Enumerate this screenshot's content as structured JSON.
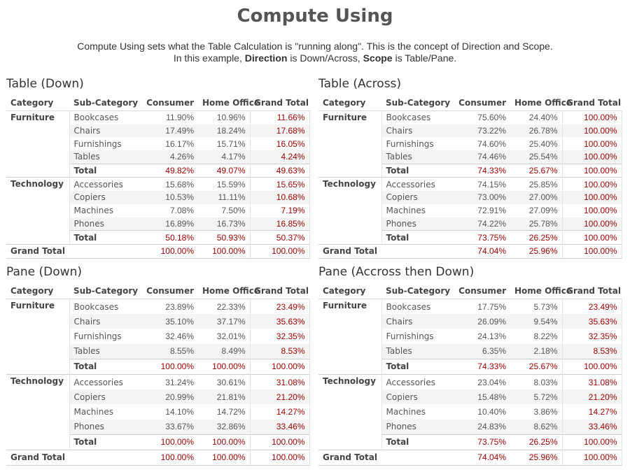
{
  "header": {
    "title": "Compute Using",
    "line1": "Compute Using sets what the Table Calculation is \"running along\". This is the concept of Direction and Scope.",
    "line2_a": "In this example, ",
    "line2_b": "Direction",
    "line2_c": " is Down/Across, ",
    "line2_d": "Scope",
    "line2_e": " is Table/Pane."
  },
  "columns": [
    "Category",
    "Sub-Category",
    "Consumer",
    "Home Office",
    "Grand Total"
  ],
  "grand_total_label": "Grand Total",
  "total_label": "Total",
  "panels": [
    {
      "title": "Table (Down)",
      "groups": [
        {
          "category": "Furniture",
          "rows": [
            [
              "Bookcases",
              "11.90%",
              "10.96%",
              "11.66%"
            ],
            [
              "Chairs",
              "17.49%",
              "18.24%",
              "17.68%"
            ],
            [
              "Furnishings",
              "16.17%",
              "15.71%",
              "16.05%"
            ],
            [
              "Tables",
              "4.26%",
              "4.17%",
              "4.24%"
            ]
          ],
          "total": [
            "49.82%",
            "49.07%",
            "49.63%"
          ]
        },
        {
          "category": "Technology",
          "rows": [
            [
              "Accessories",
              "15.68%",
              "15.59%",
              "15.65%"
            ],
            [
              "Copiers",
              "10.53%",
              "11.11%",
              "10.68%"
            ],
            [
              "Machines",
              "7.08%",
              "7.50%",
              "7.19%"
            ],
            [
              "Phones",
              "16.89%",
              "16.73%",
              "16.85%"
            ]
          ],
          "total": [
            "50.18%",
            "50.93%",
            "50.37%"
          ]
        }
      ],
      "grand": [
        "100.00%",
        "100.00%",
        "100.00%"
      ]
    },
    {
      "title": "Table (Across)",
      "groups": [
        {
          "category": "Furniture",
          "rows": [
            [
              "Bookcases",
              "75.60%",
              "24.40%",
              "100.00%"
            ],
            [
              "Chairs",
              "73.22%",
              "26.78%",
              "100.00%"
            ],
            [
              "Furnishings",
              "74.60%",
              "25.40%",
              "100.00%"
            ],
            [
              "Tables",
              "74.46%",
              "25.54%",
              "100.00%"
            ]
          ],
          "total": [
            "74.33%",
            "25.67%",
            "100.00%"
          ]
        },
        {
          "category": "Technology",
          "rows": [
            [
              "Accessories",
              "74.15%",
              "25.85%",
              "100.00%"
            ],
            [
              "Copiers",
              "73.00%",
              "27.00%",
              "100.00%"
            ],
            [
              "Machines",
              "72.91%",
              "27.09%",
              "100.00%"
            ],
            [
              "Phones",
              "74.22%",
              "25.78%",
              "100.00%"
            ]
          ],
          "total": [
            "73.75%",
            "26.25%",
            "100.00%"
          ]
        }
      ],
      "grand": [
        "74.04%",
        "25.96%",
        "100.00%"
      ]
    },
    {
      "title": "Pane (Down)",
      "groups": [
        {
          "category": "Furniture",
          "rows": [
            [
              "Bookcases",
              "23.89%",
              "22.33%",
              "23.49%"
            ],
            [
              "Chairs",
              "35.10%",
              "37.17%",
              "35.63%"
            ],
            [
              "Furnishings",
              "32.46%",
              "32.01%",
              "32.35%"
            ],
            [
              "Tables",
              "8.55%",
              "8.49%",
              "8.53%"
            ]
          ],
          "total": [
            "100.00%",
            "100.00%",
            "100.00%"
          ]
        },
        {
          "category": "Technology",
          "rows": [
            [
              "Accessories",
              "31.24%",
              "30.61%",
              "31.08%"
            ],
            [
              "Copiers",
              "20.99%",
              "21.81%",
              "21.20%"
            ],
            [
              "Machines",
              "14.10%",
              "14.72%",
              "14.27%"
            ],
            [
              "Phones",
              "33.67%",
              "32.86%",
              "33.46%"
            ]
          ],
          "total": [
            "100.00%",
            "100.00%",
            "100.00%"
          ]
        }
      ],
      "grand": [
        "100.00%",
        "100.00%",
        "100.00%"
      ]
    },
    {
      "title": "Pane (Accross then Down)",
      "groups": [
        {
          "category": "Furniture",
          "rows": [
            [
              "Bookcases",
              "17.75%",
              "5.73%",
              "23.49%"
            ],
            [
              "Chairs",
              "26.09%",
              "9.54%",
              "35.63%"
            ],
            [
              "Furnishings",
              "24.13%",
              "8.22%",
              "32.35%"
            ],
            [
              "Tables",
              "6.35%",
              "2.18%",
              "8.53%"
            ]
          ],
          "total": [
            "74.33%",
            "25.67%",
            "100.00%"
          ]
        },
        {
          "category": "Technology",
          "rows": [
            [
              "Accessories",
              "23.04%",
              "8.03%",
              "31.08%"
            ],
            [
              "Copiers",
              "15.48%",
              "5.72%",
              "21.20%"
            ],
            [
              "Machines",
              "10.40%",
              "3.86%",
              "14.27%"
            ],
            [
              "Phones",
              "24.83%",
              "8.62%",
              "33.46%"
            ]
          ],
          "total": [
            "73.75%",
            "26.25%",
            "100.00%"
          ]
        }
      ],
      "grand": [
        "74.04%",
        "25.96%",
        "100.00%"
      ]
    }
  ]
}
